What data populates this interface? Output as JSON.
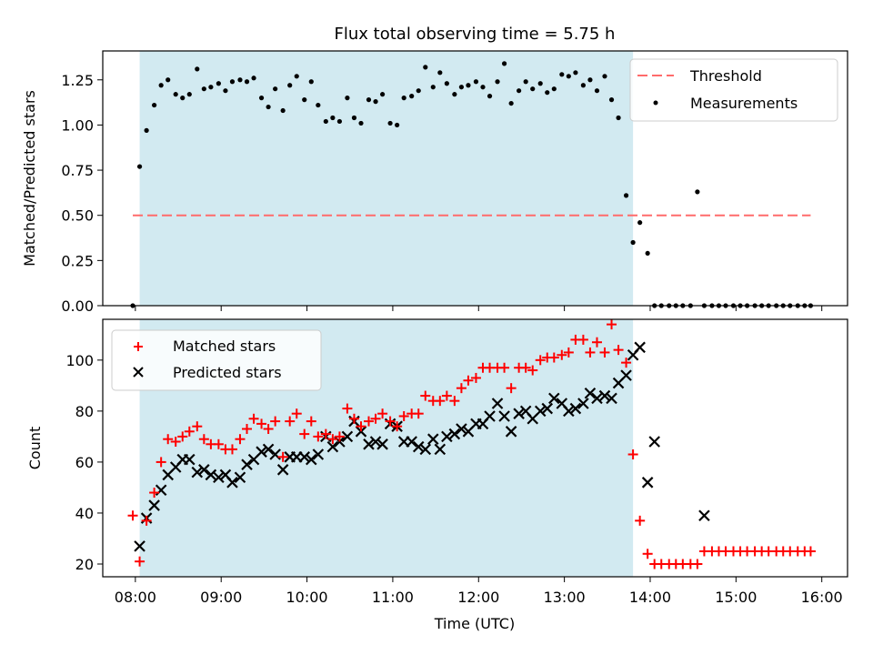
{
  "chart_data": [
    {
      "type": "scatter",
      "title": "Flux total observing time = 5.75 h",
      "xlabel": "",
      "ylabel": "Matched/Predicted stars",
      "xlim": [
        7.62,
        16.3
      ],
      "ylim": [
        0,
        1.41
      ],
      "yticks": [
        0,
        0.25,
        0.5,
        0.75,
        1.0,
        1.25
      ],
      "ytick_labels": [
        "0.00",
        "0.25",
        "0.50",
        "0.75",
        "1.00",
        "1.25"
      ],
      "observing_span": {
        "start": 8.05,
        "end": 13.8,
        "color": "#add8e6"
      },
      "threshold": {
        "name": "Threshold",
        "value": 0.5,
        "x_start": 7.97,
        "x_end": 15.87,
        "color": "#ff6b6b"
      },
      "legend": [
        "Threshold",
        "Measurements"
      ],
      "series": [
        {
          "name": "Measurements",
          "x": [
            7.97,
            8.05,
            8.13,
            8.22,
            8.3,
            8.38,
            8.47,
            8.55,
            8.63,
            8.72,
            8.8,
            8.88,
            8.97,
            9.05,
            9.13,
            9.22,
            9.3,
            9.38,
            9.47,
            9.55,
            9.63,
            9.72,
            9.8,
            9.88,
            9.97,
            10.05,
            10.13,
            10.22,
            10.3,
            10.38,
            10.47,
            10.55,
            10.63,
            10.72,
            10.8,
            10.88,
            10.97,
            11.05,
            11.13,
            11.22,
            11.3,
            11.38,
            11.47,
            11.55,
            11.63,
            11.72,
            11.8,
            11.88,
            11.97,
            12.05,
            12.13,
            12.22,
            12.3,
            12.38,
            12.47,
            12.55,
            12.63,
            12.72,
            12.8,
            12.88,
            12.97,
            13.05,
            13.13,
            13.22,
            13.3,
            13.38,
            13.47,
            13.55,
            13.63,
            13.72,
            13.8,
            13.88,
            13.97,
            14.05,
            14.13,
            14.22,
            14.3,
            14.38,
            14.47,
            14.55,
            14.63,
            14.72,
            14.8,
            14.88,
            14.97,
            15.05,
            15.13,
            15.22,
            15.3,
            15.38,
            15.47,
            15.55,
            15.63,
            15.72,
            15.8,
            15.87
          ],
          "y": [
            0.0,
            0.77,
            0.97,
            1.11,
            1.22,
            1.25,
            1.17,
            1.15,
            1.17,
            1.31,
            1.2,
            1.21,
            1.23,
            1.19,
            1.24,
            1.25,
            1.24,
            1.26,
            1.15,
            1.1,
            1.2,
            1.08,
            1.22,
            1.27,
            1.14,
            1.24,
            1.11,
            1.02,
            1.04,
            1.02,
            1.15,
            1.04,
            1.01,
            1.14,
            1.13,
            1.17,
            1.01,
            1.0,
            1.15,
            1.16,
            1.19,
            1.32,
            1.21,
            1.29,
            1.23,
            1.17,
            1.21,
            1.22,
            1.24,
            1.21,
            1.16,
            1.24,
            1.34,
            1.12,
            1.19,
            1.24,
            1.2,
            1.23,
            1.18,
            1.2,
            1.28,
            1.27,
            1.29,
            1.22,
            1.25,
            1.19,
            1.27,
            1.14,
            1.04,
            0.61,
            0.35,
            0.46,
            0.29,
            0.0,
            0.0,
            0.0,
            0.0,
            0.0,
            0.0,
            0.63,
            0.0,
            0.0,
            0.0,
            0.0,
            0.0,
            0.0,
            0.0,
            0.0,
            0.0,
            0.0,
            0.0,
            0.0,
            0.0,
            0.0,
            0.0,
            0.0
          ]
        }
      ]
    },
    {
      "type": "scatter",
      "title": "",
      "xlabel": "Time (UTC)",
      "ylabel": "Count",
      "xlim": [
        7.62,
        16.3
      ],
      "ylim": [
        15,
        116
      ],
      "yticks": [
        20,
        40,
        60,
        80,
        100
      ],
      "ytick_labels": [
        "20",
        "40",
        "60",
        "80",
        "100"
      ],
      "xticks": [
        8,
        9,
        10,
        11,
        12,
        13,
        14,
        15,
        16
      ],
      "xtick_labels": [
        "08:00",
        "09:00",
        "10:00",
        "11:00",
        "12:00",
        "13:00",
        "14:00",
        "15:00",
        "16:00"
      ],
      "observing_span": {
        "start": 8.05,
        "end": 13.8,
        "color": "#add8e6"
      },
      "legend": [
        "Matched stars",
        "Predicted stars"
      ],
      "series": [
        {
          "name": "Matched stars",
          "marker": "plus",
          "color": "#ff0000",
          "x": [
            7.97,
            8.05,
            8.13,
            8.22,
            8.3,
            8.38,
            8.47,
            8.55,
            8.63,
            8.72,
            8.8,
            8.88,
            8.97,
            9.05,
            9.13,
            9.22,
            9.3,
            9.38,
            9.47,
            9.55,
            9.63,
            9.72,
            9.8,
            9.88,
            9.97,
            10.05,
            10.13,
            10.22,
            10.3,
            10.38,
            10.47,
            10.55,
            10.63,
            10.72,
            10.8,
            10.88,
            10.97,
            11.05,
            11.13,
            11.22,
            11.3,
            11.38,
            11.47,
            11.55,
            11.63,
            11.72,
            11.8,
            11.88,
            11.97,
            12.05,
            12.13,
            12.22,
            12.3,
            12.38,
            12.47,
            12.55,
            12.63,
            12.72,
            12.8,
            12.88,
            12.97,
            13.05,
            13.13,
            13.22,
            13.3,
            13.38,
            13.47,
            13.55,
            13.63,
            13.72,
            13.8,
            13.88,
            13.97,
            14.05,
            14.13,
            14.22,
            14.3,
            14.38,
            14.47,
            14.55,
            14.63,
            14.72,
            14.8,
            14.88,
            14.97,
            15.05,
            15.13,
            15.22,
            15.3,
            15.38,
            15.47,
            15.55,
            15.63,
            15.72,
            15.8,
            15.87
          ],
          "y": [
            39,
            21,
            37,
            48,
            60,
            69,
            68,
            70,
            72,
            74,
            69,
            67,
            67,
            65,
            65,
            69,
            73,
            77,
            75,
            73,
            76,
            62,
            76,
            79,
            71,
            76,
            70,
            71,
            69,
            70,
            81,
            77,
            74,
            76,
            77,
            79,
            76,
            74,
            78,
            79,
            79,
            86,
            84,
            84,
            86,
            84,
            89,
            92,
            93,
            97,
            97,
            97,
            97,
            89,
            97,
            97,
            96,
            100,
            101,
            101,
            102,
            103,
            108,
            108,
            103,
            107,
            103,
            114,
            104,
            99,
            63,
            37,
            24,
            20,
            20,
            20,
            20,
            20,
            20,
            20,
            25,
            25,
            25,
            25,
            25,
            25,
            25,
            25,
            25,
            25,
            25,
            25,
            25,
            25,
            25,
            25
          ]
        },
        {
          "name": "Predicted stars",
          "marker": "x",
          "color": "#000000",
          "x": [
            8.05,
            8.13,
            8.22,
            8.3,
            8.38,
            8.47,
            8.55,
            8.63,
            8.72,
            8.8,
            8.88,
            8.97,
            9.05,
            9.13,
            9.22,
            9.3,
            9.38,
            9.47,
            9.55,
            9.63,
            9.72,
            9.8,
            9.88,
            9.97,
            10.05,
            10.13,
            10.22,
            10.3,
            10.38,
            10.47,
            10.55,
            10.63,
            10.72,
            10.8,
            10.88,
            10.97,
            11.05,
            11.13,
            11.22,
            11.3,
            11.38,
            11.47,
            11.55,
            11.63,
            11.72,
            11.8,
            11.88,
            11.97,
            12.05,
            12.13,
            12.22,
            12.3,
            12.38,
            12.47,
            12.55,
            12.63,
            12.72,
            12.8,
            12.88,
            12.97,
            13.05,
            13.13,
            13.22,
            13.3,
            13.38,
            13.47,
            13.55,
            13.63,
            13.72,
            13.8,
            13.88,
            13.97,
            14.05,
            14.63
          ],
          "y": [
            27,
            38,
            43,
            49,
            55,
            58,
            61,
            61,
            56,
            57,
            55,
            54,
            55,
            52,
            54,
            59,
            61,
            64,
            65,
            63,
            57,
            62,
            62,
            62,
            61,
            63,
            70,
            66,
            68,
            70,
            76,
            72,
            67,
            68,
            67,
            75,
            74,
            68,
            68,
            66,
            65,
            69,
            65,
            70,
            71,
            73,
            72,
            75,
            75,
            78,
            83,
            78,
            72,
            79,
            80,
            77,
            80,
            81,
            85,
            83,
            80,
            81,
            83,
            87,
            85,
            86,
            85,
            91,
            94,
            102,
            105,
            52,
            68,
            39
          ]
        }
      ]
    }
  ]
}
